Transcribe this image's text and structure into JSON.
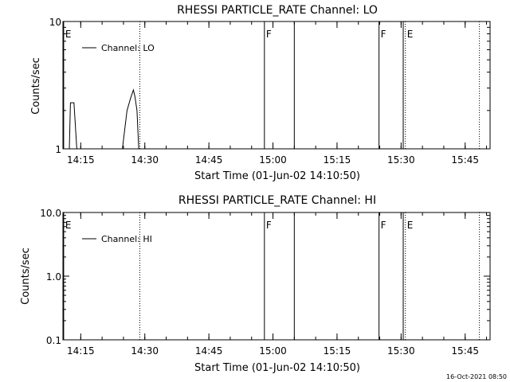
{
  "chart_data": [
    {
      "type": "line",
      "title": "RHESSI PARTICLE_RATE Channel: LO",
      "xlabel": "Start Time (01-Jun-02 14:10:50)",
      "ylabel": "Counts/sec",
      "y_scale": "log",
      "ylim": [
        1,
        10
      ],
      "xlim": [
        "14:10:50",
        "15:50:50"
      ],
      "x_ticks": [
        "14:15",
        "14:30",
        "14:45",
        "15:00",
        "15:15",
        "15:30",
        "15:45"
      ],
      "y_ticks": [
        "1",
        "10"
      ],
      "legend": "Channel: LO",
      "legend_position": "top-left",
      "series": [
        {
          "name": "Channel: LO",
          "points": [
            [
              "14:12:20",
              1.0
            ],
            [
              "14:12:35",
              2.3
            ],
            [
              "14:13:25",
              2.3
            ],
            [
              "14:14:05",
              1.0
            ],
            [
              "14:24:45",
              1.0
            ],
            [
              "14:25:50",
              2.0
            ],
            [
              "14:26:40",
              2.5
            ],
            [
              "14:27:20",
              2.9
            ],
            [
              "14:27:40",
              2.6
            ],
            [
              "14:28:10",
              2.0
            ],
            [
              "14:28:35",
              1.0
            ]
          ]
        }
      ],
      "markers": [
        {
          "label": "E",
          "time": "14:11:00",
          "style": "solid"
        },
        {
          "label": "",
          "time": "14:28:50",
          "style": "dotted"
        },
        {
          "label": "F",
          "time": "14:58:00",
          "style": "solid"
        },
        {
          "label": "",
          "time": "15:05:00",
          "style": "solid"
        },
        {
          "label": "F",
          "time": "15:24:50",
          "style": "solid"
        },
        {
          "label": "",
          "time": "15:30:30",
          "style": "solid"
        },
        {
          "label": "E",
          "time": "15:31:00",
          "style": "dotted"
        },
        {
          "label": "",
          "time": "15:48:20",
          "style": "dotted"
        }
      ]
    },
    {
      "type": "line",
      "title": "RHESSI PARTICLE_RATE Channel: HI",
      "xlabel": "Start Time (01-Jun-02 14:10:50)",
      "ylabel": "Counts/sec",
      "y_scale": "log",
      "ylim": [
        0.1,
        10
      ],
      "xlim": [
        "14:10:50",
        "15:50:50"
      ],
      "x_ticks": [
        "14:15",
        "14:30",
        "14:45",
        "15:00",
        "15:15",
        "15:30",
        "15:45"
      ],
      "y_ticks": [
        "0.1",
        "1.0",
        "10.0"
      ],
      "legend": "Channel: HI",
      "legend_position": "top-left",
      "series": [
        {
          "name": "Channel: HI",
          "points": []
        }
      ],
      "markers": [
        {
          "label": "E",
          "time": "14:11:00",
          "style": "solid"
        },
        {
          "label": "",
          "time": "14:28:50",
          "style": "dotted"
        },
        {
          "label": "F",
          "time": "14:58:00",
          "style": "solid"
        },
        {
          "label": "",
          "time": "15:05:00",
          "style": "solid"
        },
        {
          "label": "F",
          "time": "15:24:50",
          "style": "solid"
        },
        {
          "label": "",
          "time": "15:30:30",
          "style": "solid"
        },
        {
          "label": "E",
          "time": "15:31:00",
          "style": "dotted"
        },
        {
          "label": "",
          "time": "15:48:20",
          "style": "dotted"
        }
      ]
    }
  ],
  "footer": {
    "timestamp": "16-Oct-2021 08:50"
  }
}
